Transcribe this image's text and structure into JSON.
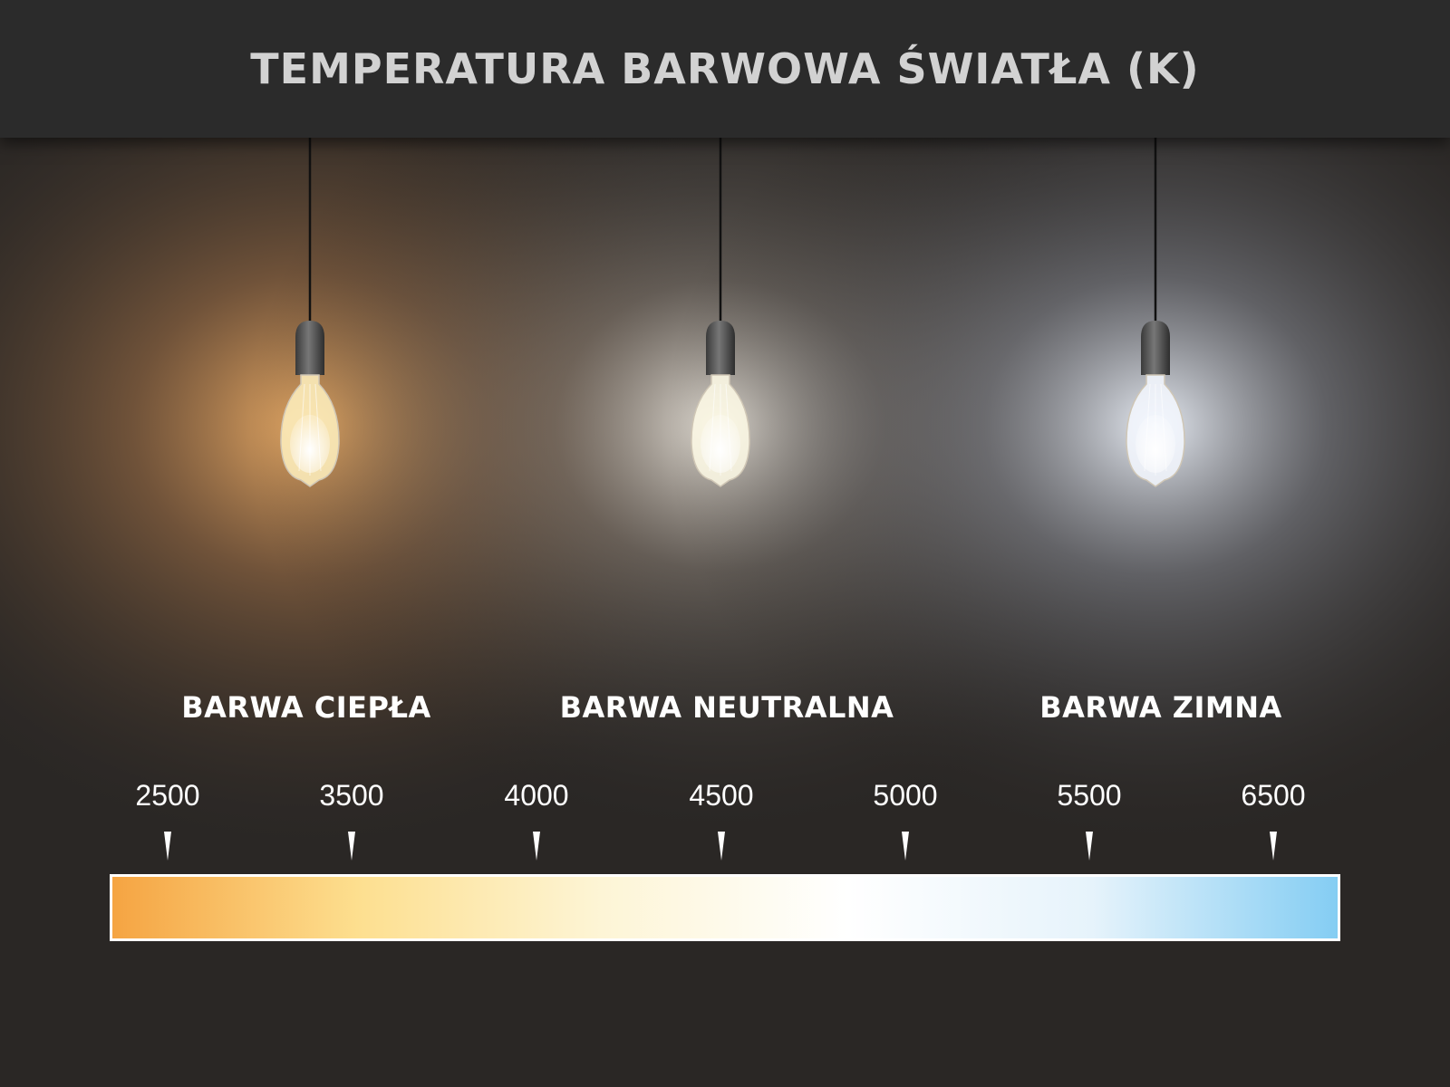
{
  "title": "TEMPERATURA BARWOWA ŚWIATŁA (K)",
  "zones": [
    {
      "label": "BARWA CIEPŁA",
      "glow": "#f7b56a",
      "bulb": "#fff1c0"
    },
    {
      "label": "BARWA NEUTRALNA",
      "glow": "#e8e2d8",
      "bulb": "#fffbe8"
    },
    {
      "label": "BARWA ZIMNA",
      "glow": "#e4ecf8",
      "bulb": "#f4f8ff"
    }
  ],
  "scale": {
    "ticks": [
      "2500",
      "3500",
      "4000",
      "4500",
      "5000",
      "5500",
      "6500"
    ],
    "gradient": [
      "#f5a442",
      "#fddf8f",
      "#fdf5d6",
      "#ffffff",
      "#e6f3fb",
      "#84cdf3"
    ]
  }
}
